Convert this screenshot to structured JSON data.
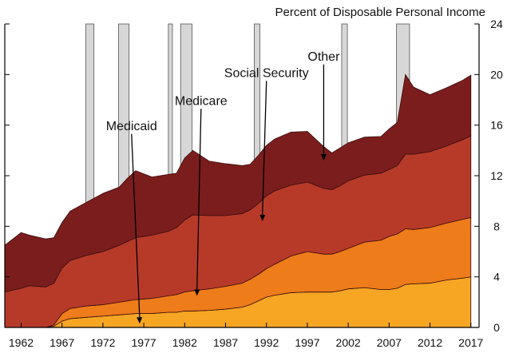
{
  "chart_data": {
    "type": "area",
    "stacked": true,
    "title": "",
    "xlabel": "",
    "ylabel": "Percent of Disposable Personal Income",
    "xlim": [
      1960,
      2018
    ],
    "ylim": [
      0,
      24
    ],
    "x_ticks": [
      1962,
      1967,
      1972,
      1977,
      1982,
      1987,
      1992,
      1997,
      2002,
      2007,
      2012,
      2017
    ],
    "y_ticks": [
      0,
      4,
      8,
      12,
      16,
      20,
      24
    ],
    "x_tick_labels": [
      "1962",
      "1967",
      "1972",
      "1977",
      "1982",
      "1987",
      "1992",
      "1997",
      "2002",
      "2007",
      "2012",
      "2017"
    ],
    "y_tick_labels": [
      "0",
      "4",
      "8",
      "12",
      "16",
      "20",
      "24"
    ],
    "y_axis_position": "right",
    "grid": false,
    "legend": "none",
    "recessions": [
      [
        1969.9,
        1970.9
      ],
      [
        1973.9,
        1975.2
      ],
      [
        1980.0,
        1980.5
      ],
      [
        1981.5,
        1982.9
      ],
      [
        1990.5,
        1991.2
      ],
      [
        2001.2,
        2001.9
      ],
      [
        2007.9,
        2009.5
      ]
    ],
    "x": [
      1960,
      1962,
      1963,
      1965,
      1966,
      1967,
      1968,
      1970,
      1972,
      1974,
      1975,
      1976,
      1978,
      1980,
      1981,
      1982,
      1983,
      1985,
      1987,
      1989,
      1990,
      1991,
      1992,
      1993,
      1995,
      1997,
      1999,
      2000,
      2001,
      2002,
      2004,
      2006,
      2007,
      2008,
      2009,
      2010,
      2012,
      2014,
      2016,
      2017
    ],
    "series": [
      {
        "name": "Medicaid",
        "color": "#f6a623",
        "values": [
          0,
          0,
          0,
          0,
          0.1,
          0.5,
          0.7,
          0.8,
          0.9,
          1.0,
          1.05,
          1.1,
          1.1,
          1.2,
          1.2,
          1.3,
          1.3,
          1.35,
          1.45,
          1.6,
          1.8,
          2.1,
          2.4,
          2.55,
          2.75,
          2.8,
          2.8,
          2.8,
          2.9,
          3.05,
          3.15,
          3.0,
          3.0,
          3.1,
          3.4,
          3.45,
          3.5,
          3.75,
          3.9,
          4.0
        ]
      },
      {
        "name": "Medicare",
        "color": "#ee7c1a",
        "values": [
          0,
          0,
          0,
          0,
          0.1,
          0.6,
          0.8,
          0.9,
          0.9,
          1.0,
          1.05,
          1.1,
          1.2,
          1.3,
          1.4,
          1.5,
          1.6,
          1.7,
          1.8,
          1.9,
          2.0,
          2.1,
          2.25,
          2.45,
          2.9,
          3.2,
          3.0,
          3.0,
          3.1,
          3.2,
          3.6,
          3.9,
          4.2,
          4.3,
          4.4,
          4.3,
          4.4,
          4.5,
          4.65,
          4.7
        ]
      },
      {
        "name": "Social Security",
        "color": "#b73a29",
        "values": [
          2.8,
          3.1,
          3.3,
          3.2,
          3.3,
          3.6,
          3.8,
          4.0,
          4.2,
          4.5,
          4.7,
          4.9,
          5.0,
          5.1,
          5.3,
          5.7,
          6.0,
          5.8,
          5.6,
          5.5,
          5.5,
          5.6,
          5.75,
          5.8,
          5.6,
          5.5,
          5.2,
          5.1,
          5.2,
          5.35,
          5.3,
          5.3,
          5.3,
          5.4,
          5.9,
          5.95,
          6.0,
          6.1,
          6.3,
          6.45
        ]
      },
      {
        "name": "Other",
        "color": "#7b1d1d",
        "values": [
          3.7,
          4.4,
          4.0,
          3.8,
          3.6,
          3.6,
          3.9,
          4.2,
          4.6,
          4.6,
          5.0,
          5.3,
          4.6,
          4.5,
          4.3,
          4.9,
          5.1,
          4.3,
          4.1,
          3.8,
          3.6,
          3.8,
          4.0,
          4.1,
          4.2,
          4.0,
          3.3,
          2.9,
          3.0,
          3.0,
          3.0,
          2.9,
          3.2,
          3.4,
          6.3,
          5.3,
          4.5,
          4.6,
          4.7,
          4.8
        ]
      }
    ],
    "annotations": [
      {
        "text": "Medicaid",
        "x": 1976.5,
        "y": 0.3,
        "label_x": 1975.5,
        "label_y": 15.3,
        "label_y_label": 15.6
      },
      {
        "text": "Medicare",
        "x": 1983.5,
        "y": 2.5,
        "label_x": 1984.0,
        "label_y": 17.3,
        "label_y_label": 17.6
      },
      {
        "text": "Social Security",
        "x": 1991.5,
        "y": 8.4,
        "label_x": 1992.0,
        "label_y": 19.5,
        "label_y_label": 19.8
      },
      {
        "text": "Other",
        "x": 1999.0,
        "y": 13.2,
        "label_x": 1999.0,
        "label_y": 20.8,
        "label_y_label": 21.1
      }
    ]
  }
}
